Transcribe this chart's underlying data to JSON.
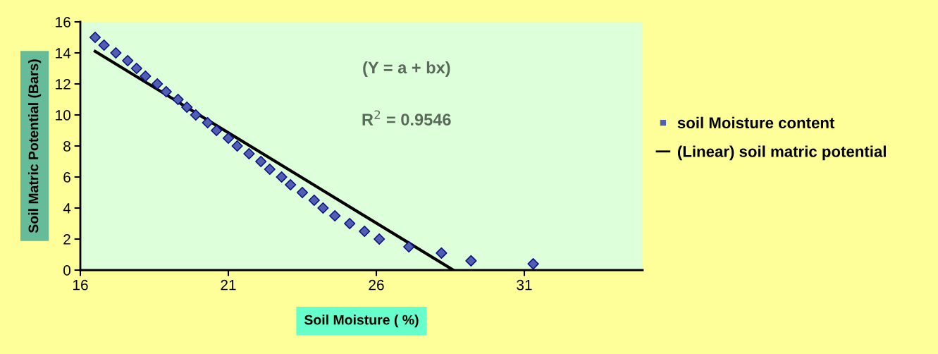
{
  "chart_data": {
    "type": "scatter",
    "xlabel": "Soil Moisture ( %)",
    "ylabel": "Soil Matric Potential (Bars)",
    "annotations": [
      "(Y = a + bx)",
      "R$^{2}$ = 0.9546"
    ],
    "series": [
      {
        "name": "soil Moisture content",
        "color": "#5060b0",
        "marker": "diamond",
        "x": [
          16.5,
          16.8,
          17.2,
          17.6,
          17.9,
          18.2,
          18.6,
          18.9,
          19.3,
          19.6,
          19.9,
          20.3,
          20.6,
          21.0,
          21.3,
          21.7,
          22.1,
          22.4,
          22.8,
          23.1,
          23.5,
          23.9,
          24.2,
          24.6,
          25.1,
          25.6,
          26.1,
          27.1,
          28.2,
          29.2,
          31.3
        ],
        "values": [
          15,
          14.5,
          14,
          13.5,
          13,
          12.5,
          12,
          11.5,
          11,
          10.5,
          10,
          9.5,
          9,
          8.5,
          8,
          7.5,
          7,
          6.5,
          6,
          5.5,
          5,
          4.5,
          4,
          3.5,
          3,
          2.5,
          2,
          1.5,
          1.1,
          0.6,
          0.4
        ]
      },
      {
        "name": "(Linear) soil matric potential",
        "type": "line",
        "color": "#000000",
        "line_style": "solid",
        "x": [
          16.5,
          28.6
        ],
        "values": [
          14.1,
          0
        ]
      }
    ],
    "xlim": [
      16,
      35
    ],
    "xticks": [
      16,
      21,
      26,
      31
    ],
    "ylim": [
      0,
      16
    ],
    "yticks": [
      0,
      2,
      4,
      6,
      8,
      10,
      12,
      14,
      16
    ],
    "grid": false,
    "legend": "right"
  }
}
